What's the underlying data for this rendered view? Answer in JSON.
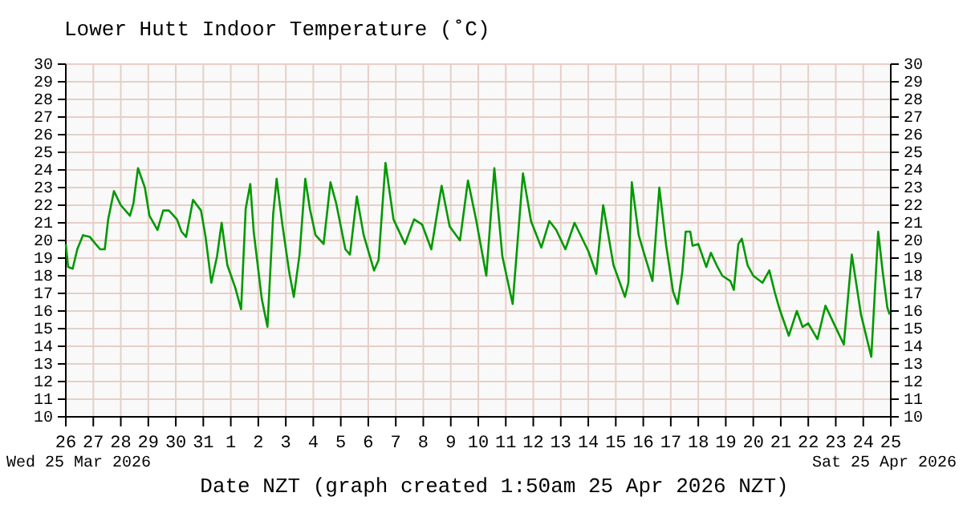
{
  "chart_data": {
    "type": "line",
    "title": "Lower Hutt Indoor Temperature (˚C)",
    "xlabel": "Date NZT (graph created 1:50am 25 Apr 2026 NZT)",
    "annotations": [
      "Wed 25 Mar 2026",
      "Sat 25 Apr 2026"
    ],
    "grid": true,
    "xlim": [
      "2026-03-26T00:00",
      "2026-04-25T00:00"
    ],
    "xticks": [
      {
        "value": "2026-03-26T00:00",
        "label": "26"
      },
      {
        "value": "2026-03-27T00:00",
        "label": "27"
      },
      {
        "value": "2026-03-28T00:00",
        "label": "28"
      },
      {
        "value": "2026-03-29T00:00",
        "label": "29"
      },
      {
        "value": "2026-03-30T00:00",
        "label": "30"
      },
      {
        "value": "2026-03-31T00:00",
        "label": "31"
      },
      {
        "value": "2026-04-01T00:00",
        "label": "1"
      },
      {
        "value": "2026-04-02T00:00",
        "label": "2"
      },
      {
        "value": "2026-04-03T00:00",
        "label": "3"
      },
      {
        "value": "2026-04-04T00:00",
        "label": "4"
      },
      {
        "value": "2026-04-05T00:00",
        "label": "5"
      },
      {
        "value": "2026-04-06T00:00",
        "label": "6"
      },
      {
        "value": "2026-04-07T00:00",
        "label": "7"
      },
      {
        "value": "2026-04-08T00:00",
        "label": "8"
      },
      {
        "value": "2026-04-09T00:00",
        "label": "9"
      },
      {
        "value": "2026-04-10T00:00",
        "label": "10"
      },
      {
        "value": "2026-04-11T00:00",
        "label": "11"
      },
      {
        "value": "2026-04-12T00:00",
        "label": "12"
      },
      {
        "value": "2026-04-13T00:00",
        "label": "13"
      },
      {
        "value": "2026-04-14T00:00",
        "label": "14"
      },
      {
        "value": "2026-04-15T00:00",
        "label": "15"
      },
      {
        "value": "2026-04-16T00:00",
        "label": "16"
      },
      {
        "value": "2026-04-17T00:00",
        "label": "17"
      },
      {
        "value": "2026-04-18T00:00",
        "label": "18"
      },
      {
        "value": "2026-04-19T00:00",
        "label": "19"
      },
      {
        "value": "2026-04-20T00:00",
        "label": "20"
      },
      {
        "value": "2026-04-21T00:00",
        "label": "21"
      },
      {
        "value": "2026-04-22T00:00",
        "label": "22"
      },
      {
        "value": "2026-04-23T00:00",
        "label": "23"
      },
      {
        "value": "2026-04-24T00:00",
        "label": "24"
      },
      {
        "value": "2026-04-25T00:00",
        "label": "25"
      }
    ],
    "ylim": [
      10,
      30
    ],
    "yticks": [
      10,
      11,
      12,
      13,
      14,
      15,
      16,
      17,
      18,
      19,
      20,
      21,
      22,
      23,
      24,
      25,
      26,
      27,
      28,
      29,
      30
    ],
    "y2lim": [
      10,
      30
    ],
    "y2ticks": [
      10,
      11,
      12,
      13,
      14,
      15,
      16,
      17,
      18,
      19,
      20,
      21,
      22,
      23,
      24,
      25,
      26,
      27,
      28,
      29,
      30
    ],
    "series": [
      {
        "color": "#009900",
        "x": [
          "2026-03-26T00:00",
          "2026-03-26T02:00",
          "2026-03-26T06:00",
          "2026-03-26T10:00",
          "2026-03-26T15:00",
          "2026-03-26T21:00",
          "2026-03-27T02:00",
          "2026-03-27T06:00",
          "2026-03-27T10:00",
          "2026-03-27T13:00",
          "2026-03-27T18:00",
          "2026-03-28T00:00",
          "2026-03-28T08:00",
          "2026-03-28T11:00",
          "2026-03-28T15:00",
          "2026-03-28T21:00",
          "2026-03-29T01:00",
          "2026-03-29T08:00",
          "2026-03-29T13:00",
          "2026-03-29T18:00",
          "2026-03-30T01:00",
          "2026-03-30T05:00",
          "2026-03-30T09:00",
          "2026-03-30T15:00",
          "2026-03-30T22:00",
          "2026-03-31T02:00",
          "2026-03-31T07:00",
          "2026-03-31T12:00",
          "2026-03-31T16:00",
          "2026-03-31T21:00",
          "2026-04-01T04:00",
          "2026-04-01T09:00",
          "2026-04-01T13:00",
          "2026-04-01T17:00",
          "2026-04-01T20:00",
          "2026-04-02T03:00",
          "2026-04-02T08:00",
          "2026-04-02T13:00",
          "2026-04-02T16:00",
          "2026-04-02T21:00",
          "2026-04-03T03:00",
          "2026-04-03T07:00",
          "2026-04-03T12:00",
          "2026-04-03T17:00",
          "2026-04-03T21:00",
          "2026-04-04T02:00",
          "2026-04-04T09:00",
          "2026-04-04T15:00",
          "2026-04-04T20:00",
          "2026-04-05T04:00",
          "2026-04-05T08:00",
          "2026-04-05T14:00",
          "2026-04-05T20:00",
          "2026-04-06T05:00",
          "2026-04-06T09:00",
          "2026-04-06T15:00",
          "2026-04-06T22:00",
          "2026-04-07T08:00",
          "2026-04-07T16:00",
          "2026-04-07T23:00",
          "2026-04-08T07:00",
          "2026-04-08T16:00",
          "2026-04-08T23:00",
          "2026-04-09T08:00",
          "2026-04-09T15:00",
          "2026-04-09T22:00",
          "2026-04-10T07:00",
          "2026-04-10T14:00",
          "2026-04-10T21:00",
          "2026-04-11T06:00",
          "2026-04-11T15:00",
          "2026-04-11T22:00",
          "2026-04-12T07:00",
          "2026-04-12T14:00",
          "2026-04-12T20:00",
          "2026-04-13T04:00",
          "2026-04-13T12:00",
          "2026-04-14T00:00",
          "2026-04-14T07:00",
          "2026-04-14T13:00",
          "2026-04-14T22:00",
          "2026-04-15T08:00",
          "2026-04-15T11:00",
          "2026-04-15T14:00",
          "2026-04-15T20:00",
          "2026-04-16T01:00",
          "2026-04-16T08:00",
          "2026-04-16T14:00",
          "2026-04-16T20:00",
          "2026-04-17T02:00",
          "2026-04-17T06:00",
          "2026-04-17T10:00",
          "2026-04-17T13:00",
          "2026-04-17T17:00",
          "2026-04-17T19:00",
          "2026-04-18T00:00",
          "2026-04-18T07:00",
          "2026-04-18T11:00",
          "2026-04-18T16:00",
          "2026-04-18T21:00",
          "2026-04-19T04:00",
          "2026-04-19T07:00",
          "2026-04-19T11:00",
          "2026-04-19T14:00",
          "2026-04-19T19:00",
          "2026-04-20T00:00",
          "2026-04-20T08:00",
          "2026-04-20T14:00",
          "2026-04-20T19:00",
          "2026-04-20T23:00",
          "2026-04-21T07:00",
          "2026-04-21T14:00",
          "2026-04-21T19:00",
          "2026-04-22T00:00",
          "2026-04-22T08:00",
          "2026-04-22T15:00",
          "2026-04-22T23:00",
          "2026-04-23T07:00",
          "2026-04-23T14:00",
          "2026-04-23T22:00",
          "2026-04-24T04:00",
          "2026-04-24T07:00",
          "2026-04-24T13:00",
          "2026-04-24T17:00",
          "2026-04-24T21:00",
          "2026-04-24T23:00"
        ],
        "values": [
          19.8,
          18.5,
          18.4,
          19.5,
          20.3,
          20.2,
          19.8,
          19.5,
          19.5,
          21.2,
          22.8,
          22.0,
          21.4,
          22.1,
          24.1,
          23.0,
          21.4,
          20.6,
          21.7,
          21.7,
          21.2,
          20.5,
          20.2,
          22.3,
          21.7,
          20.2,
          17.6,
          19.1,
          21.0,
          18.6,
          17.3,
          16.1,
          21.8,
          23.2,
          20.5,
          16.7,
          15.1,
          21.5,
          23.5,
          20.9,
          18.2,
          16.8,
          19.2,
          23.5,
          21.8,
          20.3,
          19.8,
          23.3,
          22.1,
          19.5,
          19.2,
          22.5,
          20.3,
          18.3,
          18.9,
          24.4,
          21.2,
          19.8,
          21.2,
          20.9,
          19.5,
          23.1,
          20.8,
          20.0,
          23.4,
          21.2,
          18.0,
          24.1,
          19.1,
          16.4,
          23.8,
          21.1,
          19.6,
          21.1,
          20.6,
          19.5,
          21.0,
          19.4,
          18.1,
          22.0,
          18.6,
          16.8,
          17.6,
          23.3,
          20.3,
          19.2,
          17.7,
          23.0,
          19.7,
          17.1,
          16.4,
          18.2,
          20.5,
          20.5,
          19.7,
          19.8,
          18.5,
          19.3,
          18.6,
          18.0,
          17.7,
          17.2,
          19.8,
          20.1,
          18.6,
          18.0,
          17.6,
          18.3,
          17.0,
          16.1,
          14.6,
          16.0,
          15.1,
          15.3,
          14.4,
          16.3,
          15.2,
          14.1,
          19.2,
          15.8,
          14.2,
          13.4,
          20.5,
          18.2,
          16.2,
          15.8
        ]
      }
    ]
  }
}
